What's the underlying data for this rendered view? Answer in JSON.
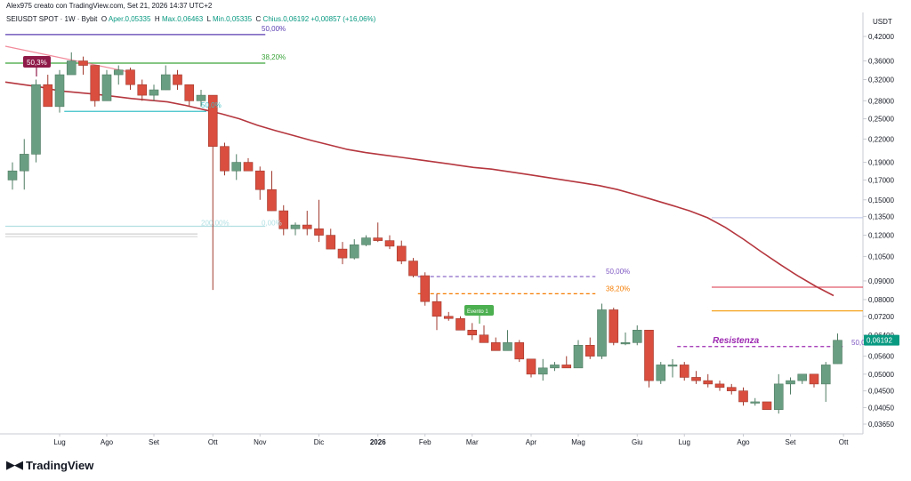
{
  "header": {
    "title": "Alex975 creato con TradingView.com, Set 21, 2026 14:37 UTC+2"
  },
  "legend": {
    "symbol": "SEIUSDT SPOT · 1W · Bybit",
    "o_label": "O",
    "o_value": "Aper.0,05335",
    "h_label": "H",
    "h_value": "Max.0,06463",
    "l_label": "L",
    "l_value": "Min.0,05335",
    "c_label": "C",
    "c_value": "Chius.0,06192",
    "change": "+0,00857 (+16,06%)"
  },
  "price_axis": {
    "currency": "USDT",
    "ticks": [
      "0,42000",
      "0,36000",
      "0,32000",
      "0,28000",
      "0,25000",
      "0,22000",
      "0,19000",
      "0,17000",
      "0,15000",
      "0,13500",
      "0,12000",
      "0,10500",
      "0,09000",
      "0,08000",
      "0,07200",
      "0,06400",
      "0,05600",
      "0,05000",
      "0,04500",
      "0,04050",
      "0,03650"
    ],
    "last_price": "0,06192",
    "last_price_color": "#089981"
  },
  "time_axis": {
    "labels": [
      "Lug",
      "Ago",
      "Set",
      "Ott",
      "Nov",
      "Dic",
      "2026",
      "Feb",
      "Mar",
      "Apr",
      "Mag",
      "Giu",
      "Lug",
      "Ago",
      "Set",
      "Ott"
    ]
  },
  "annotations": {
    "flag_top": "50,3%",
    "flag_event": "Evento 1",
    "resistance": "Resistenza",
    "fib_50_top": "50,00%",
    "fib_382_top": "38,20%",
    "fib_50_left": "50,0%",
    "fib_200": "200,00%",
    "fib_0": "0,00%",
    "fib_50_mid": "50,00%",
    "fib_382_mid": "38,20%",
    "fib_50_right": "50,0"
  },
  "colors": {
    "up": "#6a9e82",
    "down": "#d94e3e",
    "ma": "#b5363e",
    "fib_purple": "#5b3fb2",
    "fib_green": "#3aa33a",
    "fib_cyan": "#3fc0c8",
    "fib_orange": "#f5a623",
    "fib_red": "#e05a6a"
  },
  "chart_data": {
    "type": "candlestick",
    "title": "SEIUSDT SPOT · 1W · Bybit",
    "xlabel": "",
    "ylabel": "USDT",
    "y_scale": "log",
    "ylim": [
      0.034,
      0.45
    ],
    "series": [
      {
        "ohlc": [
          [
            0.17,
            0.19,
            0.16,
            0.18
          ],
          [
            0.18,
            0.22,
            0.16,
            0.2
          ],
          [
            0.2,
            0.32,
            0.19,
            0.31
          ],
          [
            0.31,
            0.33,
            0.27,
            0.27
          ],
          [
            0.27,
            0.34,
            0.26,
            0.33
          ],
          [
            0.33,
            0.38,
            0.33,
            0.36
          ],
          [
            0.36,
            0.37,
            0.33,
            0.35
          ],
          [
            0.35,
            0.35,
            0.27,
            0.28
          ],
          [
            0.28,
            0.34,
            0.28,
            0.33
          ],
          [
            0.33,
            0.35,
            0.31,
            0.34
          ],
          [
            0.34,
            0.345,
            0.3,
            0.31
          ],
          [
            0.31,
            0.32,
            0.28,
            0.29
          ],
          [
            0.29,
            0.31,
            0.28,
            0.3
          ],
          [
            0.3,
            0.35,
            0.3,
            0.33
          ],
          [
            0.33,
            0.34,
            0.3,
            0.31
          ],
          [
            0.31,
            0.31,
            0.27,
            0.28
          ],
          [
            0.28,
            0.3,
            0.27,
            0.29
          ],
          [
            0.29,
            0.29,
            0.085,
            0.21
          ],
          [
            0.21,
            0.215,
            0.175,
            0.18
          ],
          [
            0.18,
            0.2,
            0.17,
            0.19
          ],
          [
            0.19,
            0.195,
            0.18,
            0.18
          ],
          [
            0.18,
            0.185,
            0.15,
            0.16
          ],
          [
            0.16,
            0.18,
            0.14,
            0.14
          ],
          [
            0.14,
            0.145,
            0.12,
            0.125
          ],
          [
            0.125,
            0.13,
            0.12,
            0.128
          ],
          [
            0.128,
            0.14,
            0.12,
            0.125
          ],
          [
            0.125,
            0.15,
            0.115,
            0.12
          ],
          [
            0.12,
            0.125,
            0.11,
            0.11
          ],
          [
            0.11,
            0.115,
            0.1,
            0.104
          ],
          [
            0.104,
            0.117,
            0.103,
            0.113
          ],
          [
            0.113,
            0.12,
            0.112,
            0.118
          ],
          [
            0.118,
            0.13,
            0.115,
            0.116
          ],
          [
            0.116,
            0.12,
            0.11,
            0.112
          ],
          [
            0.112,
            0.116,
            0.1,
            0.102
          ],
          [
            0.102,
            0.104,
            0.092,
            0.093
          ],
          [
            0.093,
            0.095,
            0.077,
            0.079
          ],
          [
            0.079,
            0.083,
            0.066,
            0.072
          ],
          [
            0.072,
            0.074,
            0.07,
            0.071
          ],
          [
            0.071,
            0.072,
            0.066,
            0.066
          ],
          [
            0.066,
            0.069,
            0.062,
            0.064
          ],
          [
            0.064,
            0.068,
            0.061,
            0.061
          ],
          [
            0.061,
            0.063,
            0.058,
            0.058
          ],
          [
            0.058,
            0.066,
            0.058,
            0.061
          ],
          [
            0.061,
            0.062,
            0.054,
            0.055
          ],
          [
            0.055,
            0.055,
            0.049,
            0.05
          ],
          [
            0.05,
            0.055,
            0.048,
            0.052
          ],
          [
            0.052,
            0.054,
            0.051,
            0.053
          ],
          [
            0.053,
            0.056,
            0.052,
            0.052
          ],
          [
            0.052,
            0.062,
            0.052,
            0.06
          ],
          [
            0.06,
            0.063,
            0.055,
            0.056
          ],
          [
            0.056,
            0.078,
            0.055,
            0.075
          ],
          [
            0.075,
            0.076,
            0.06,
            0.061
          ],
          [
            0.061,
            0.065,
            0.06,
            0.061
          ],
          [
            0.061,
            0.068,
            0.06,
            0.066
          ],
          [
            0.066,
            0.066,
            0.046,
            0.048
          ],
          [
            0.048,
            0.054,
            0.047,
            0.053
          ],
          [
            0.053,
            0.055,
            0.049,
            0.053
          ],
          [
            0.053,
            0.054,
            0.048,
            0.049
          ],
          [
            0.049,
            0.051,
            0.047,
            0.048
          ],
          [
            0.048,
            0.05,
            0.046,
            0.047
          ],
          [
            0.047,
            0.048,
            0.045,
            0.046
          ],
          [
            0.046,
            0.047,
            0.044,
            0.045
          ],
          [
            0.045,
            0.046,
            0.041,
            0.042
          ],
          [
            0.042,
            0.043,
            0.041,
            0.042
          ],
          [
            0.042,
            0.042,
            0.04,
            0.04
          ],
          [
            0.04,
            0.05,
            0.039,
            0.047
          ],
          [
            0.047,
            0.049,
            0.044,
            0.048
          ],
          [
            0.048,
            0.05,
            0.047,
            0.05
          ],
          [
            0.05,
            0.05,
            0.046,
            0.047
          ],
          [
            0.047,
            0.054,
            0.042,
            0.053
          ],
          [
            0.0534,
            0.0646,
            0.0534,
            0.0619
          ]
        ]
      }
    ],
    "moving_average": [
      0.315,
      0.31,
      0.305,
      0.298,
      0.295,
      0.292,
      0.288,
      0.284,
      0.281,
      0.278,
      0.272,
      0.265,
      0.258,
      0.25,
      0.24,
      0.232,
      0.225,
      0.218,
      0.212,
      0.206,
      0.202,
      0.199,
      0.196,
      0.193,
      0.19,
      0.187,
      0.184,
      0.182,
      0.179,
      0.176,
      0.173,
      0.17,
      0.167,
      0.164,
      0.16,
      0.155,
      0.15,
      0.145,
      0.14,
      0.134,
      0.126,
      0.117,
      0.108,
      0.1,
      0.093,
      0.087,
      0.082
    ],
    "moving_average_start_index": 0,
    "levels": [
      {
        "label": "50,00%",
        "value": 0.425,
        "start_index": 0,
        "end_index": 21,
        "style": "solid",
        "color": "#5b3fb2"
      },
      {
        "label": "38,20%",
        "value": 0.355,
        "start_index": 0,
        "end_index": 21,
        "style": "solid",
        "color": "#3aa33a"
      },
      {
        "label": "50,0%",
        "value": 0.262,
        "start_index": 5,
        "end_index": 16,
        "style": "solid",
        "color": "#3fc0c8"
      },
      {
        "label": "200,00%",
        "value": 0.127,
        "start_index": 0,
        "end_index": 21,
        "style": "solid",
        "color": "#b2dfe3"
      },
      {
        "label": "50,00%",
        "value": 0.0925,
        "start_index": 35,
        "end_index": 49,
        "style": "dashed",
        "color": "#7e57c2"
      },
      {
        "label": "38,20%",
        "value": 0.083,
        "start_index": 35,
        "end_index": 49,
        "style": "dashed",
        "color": "#f57c00"
      },
      {
        "label": "Resistenza",
        "value": 0.0595,
        "start_index": 57,
        "end_index": 70,
        "style": "dashed",
        "color": "#9c27b0"
      }
    ]
  }
}
